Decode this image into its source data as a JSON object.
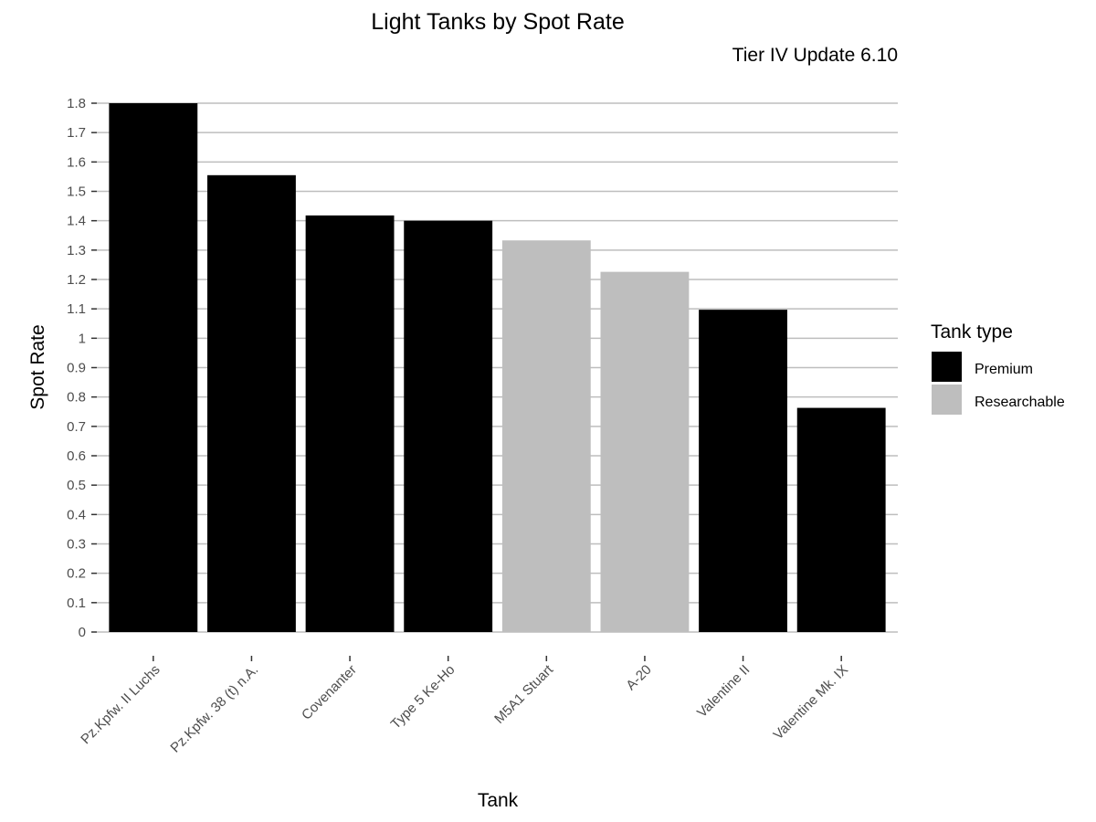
{
  "chart_data": {
    "type": "bar",
    "title": "Light Tanks by Spot Rate",
    "subtitle": "Tier IV Update 6.10",
    "xlabel": "Tank",
    "ylabel": "Spot Rate",
    "ylim": [
      0,
      1.8
    ],
    "yticks": [
      "0",
      "0.1",
      "0.2",
      "0.3",
      "0.4",
      "0.5",
      "0.6",
      "0.7",
      "0.8",
      "0.9",
      "1",
      "1.1",
      "1.2",
      "1.3",
      "1.4",
      "1.5",
      "1.6",
      "1.7",
      "1.8"
    ],
    "grid": true,
    "categories": [
      "Pz.Kpfw. II Luchs",
      "Pz.Kpfw. 38 (t) n.A.",
      "Covenanter",
      "Type 5 Ke-Ho",
      "M5A1 Stuart",
      "A-20",
      "Valentine II",
      "Valentine Mk. IX"
    ],
    "values": [
      1.8,
      1.555,
      1.418,
      1.4,
      1.333,
      1.226,
      1.097,
      0.763
    ],
    "groups": [
      "Premium",
      "Premium",
      "Premium",
      "Premium",
      "Researchable",
      "Researchable",
      "Premium",
      "Premium"
    ],
    "legend": {
      "title": "Tank type",
      "position": "right",
      "entries": [
        {
          "label": "Premium",
          "color": "#000000"
        },
        {
          "label": "Researchable",
          "color": "#bebebe"
        }
      ]
    }
  }
}
